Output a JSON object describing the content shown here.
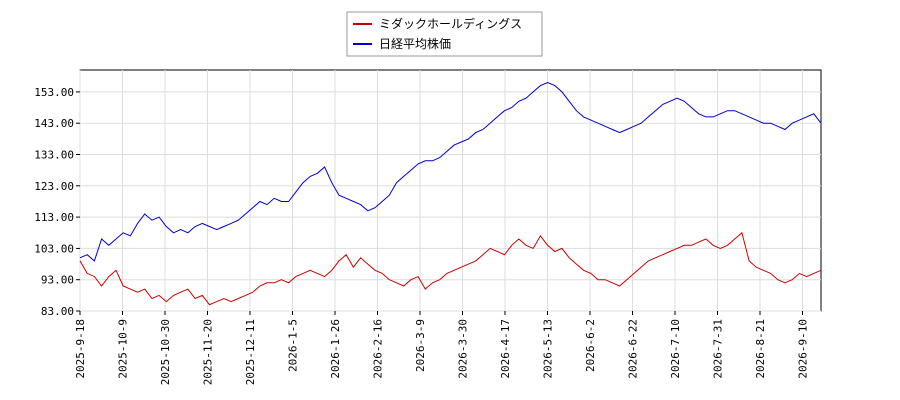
{
  "chart_data": {
    "type": "line",
    "title": "",
    "xlabel": "",
    "ylabel": "",
    "ylim": [
      83,
      160
    ],
    "yticks": [
      "83.00",
      "93.00",
      "103.00",
      "113.00",
      "123.00",
      "133.00",
      "143.00",
      "153.00"
    ],
    "xticks": [
      "2025-9-18",
      "2025-10-9",
      "2025-10-30",
      "2025-11-20",
      "2025-12-11",
      "2026-1-5",
      "2026-1-26",
      "2026-2-16",
      "2026-3-9",
      "2026-3-30",
      "2026-4-17",
      "2026-5-13",
      "2026-6-2",
      "2026-6-22",
      "2026-7-10",
      "2026-7-31",
      "2026-8-21",
      "2026-9-10"
    ],
    "grid": true,
    "legend_position": "top-center",
    "series": [
      {
        "name": "ミダックホールディングス",
        "color": "#cc0000",
        "values": [
          99,
          95,
          94,
          91,
          94,
          96,
          91,
          90,
          89,
          90,
          87,
          88,
          86,
          88,
          89,
          90,
          87,
          88,
          85,
          86,
          87,
          86,
          87,
          88,
          89,
          91,
          92,
          92,
          93,
          92,
          94,
          95,
          96,
          95,
          94,
          96,
          99,
          101,
          97,
          100,
          98,
          96,
          95,
          93,
          92,
          91,
          93,
          94,
          90,
          92,
          93,
          95,
          96,
          97,
          98,
          99,
          101,
          103,
          102,
          101,
          104,
          106,
          104,
          103,
          107,
          104,
          102,
          103,
          100,
          98,
          96,
          95,
          93,
          93,
          92,
          91,
          93,
          95,
          97,
          99,
          100,
          101,
          102,
          103,
          104,
          104,
          105,
          106,
          104,
          103,
          104,
          106,
          108,
          99,
          97,
          96,
          95,
          93,
          92,
          93,
          95,
          94,
          95,
          96
        ]
      },
      {
        "name": "日経平均株価",
        "color": "#0000cc",
        "values": [
          100,
          101,
          99,
          106,
          104,
          106,
          108,
          107,
          111,
          114,
          112,
          113,
          110,
          108,
          109,
          108,
          110,
          111,
          110,
          109,
          110,
          111,
          112,
          114,
          116,
          118,
          117,
          119,
          118,
          118,
          121,
          124,
          126,
          127,
          129,
          124,
          120,
          119,
          118,
          117,
          115,
          116,
          118,
          120,
          124,
          126,
          128,
          130,
          131,
          131,
          132,
          134,
          136,
          137,
          138,
          140,
          141,
          143,
          145,
          147,
          148,
          150,
          151,
          153,
          155,
          156,
          155,
          153,
          150,
          147,
          145,
          144,
          143,
          142,
          141,
          140,
          141,
          142,
          143,
          145,
          147,
          149,
          150,
          151,
          150,
          148,
          146,
          145,
          145,
          146,
          147,
          147,
          146,
          145,
          144,
          143,
          143,
          142,
          141,
          143,
          144,
          145,
          146,
          143
        ]
      }
    ]
  }
}
